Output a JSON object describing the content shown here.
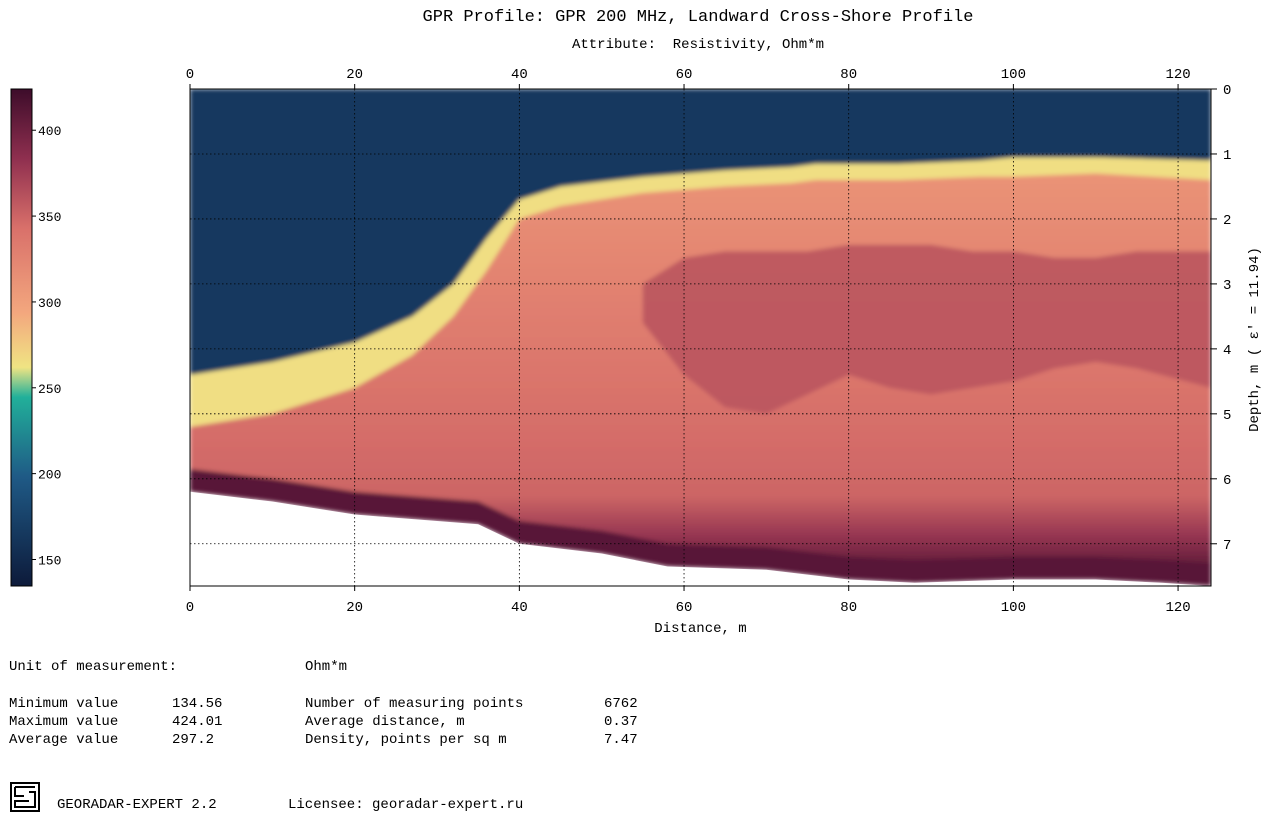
{
  "chart_data": {
    "type": "heatmap",
    "title": "GPR Profile: GPR 200 MHz, Landward Cross-Shore Profile",
    "subtitle": "Attribute:  Resistivity, Ohm*m",
    "xlabel": "Distance, m",
    "ylabel": "Depth, m",
    "ylabel_suffix": "( ε' = 11.94)",
    "xlim": [
      0,
      124
    ],
    "ylim": [
      0,
      7.65
    ],
    "x_ticks": [
      "0",
      "20",
      "40",
      "60",
      "80",
      "100",
      "120"
    ],
    "y_ticks": [
      "0",
      "1",
      "2",
      "3",
      "4",
      "5",
      "6",
      "7"
    ],
    "colorbar": {
      "min": 134.56,
      "max": 424.01,
      "ticks": [
        "400",
        "350",
        "300",
        "250",
        "200",
        "150"
      ]
    },
    "grid": "dotted",
    "bottom_boundary_depth": [
      [
        0,
        6.2
      ],
      [
        10,
        6.35
      ],
      [
        20,
        6.55
      ],
      [
        30,
        6.65
      ],
      [
        35,
        6.7
      ],
      [
        40,
        7.0
      ],
      [
        50,
        7.15
      ],
      [
        58,
        7.35
      ],
      [
        70,
        7.4
      ],
      [
        80,
        7.55
      ],
      [
        88,
        7.6
      ],
      [
        100,
        7.55
      ],
      [
        110,
        7.55
      ],
      [
        118,
        7.6
      ],
      [
        124,
        7.65
      ]
    ],
    "layers": [
      {
        "name": "upper-low-resistivity",
        "value": 165,
        "x": [
          0,
          10,
          20,
          27,
          32,
          36,
          40,
          45,
          55,
          65,
          73,
          76,
          84,
          86,
          96,
          100,
          110,
          124
        ],
        "bottom_depth": [
          4.4,
          4.2,
          3.9,
          3.5,
          3.0,
          2.3,
          1.7,
          1.5,
          1.35,
          1.25,
          1.2,
          1.15,
          1.15,
          1.15,
          1.1,
          1.05,
          1.05,
          1.1
        ]
      },
      {
        "name": "transition-band",
        "value": 265,
        "x": [
          0,
          10,
          20,
          27,
          32,
          36,
          40,
          45,
          55,
          65,
          73,
          76,
          84,
          86,
          96,
          100,
          110,
          124
        ],
        "bottom_depth": [
          5.2,
          5.0,
          4.6,
          4.1,
          3.5,
          2.8,
          2.0,
          1.8,
          1.6,
          1.5,
          1.45,
          1.4,
          1.4,
          1.4,
          1.35,
          1.35,
          1.3,
          1.4
        ]
      },
      {
        "name": "main-body",
        "value": 330,
        "x": [
          0,
          20,
          40,
          60,
          80,
          100,
          124
        ],
        "bottom_depth": [
          6.1,
          6.3,
          6.7,
          7.1,
          7.4,
          7.4,
          7.5
        ]
      },
      {
        "name": "core-high",
        "value": 360,
        "x": [
          55,
          60,
          65,
          70,
          75,
          80,
          85,
          90,
          95,
          100,
          105,
          110,
          115,
          124
        ],
        "top_depth": [
          3.0,
          2.6,
          2.5,
          2.5,
          2.5,
          2.4,
          2.4,
          2.4,
          2.5,
          2.5,
          2.6,
          2.6,
          2.5,
          2.5
        ],
        "bottom_depth": [
          3.6,
          4.4,
          4.9,
          5.0,
          4.7,
          4.4,
          4.6,
          4.7,
          4.6,
          4.5,
          4.3,
          4.2,
          4.3,
          4.6
        ]
      },
      {
        "name": "base-high",
        "value": 410,
        "x": [
          0,
          124
        ],
        "thickness": 0.35
      }
    ]
  },
  "stats": {
    "unit_label": "Unit of measurement:",
    "unit_value": "Ohm*m",
    "min_label": "Minimum value",
    "min_value": "134.56",
    "max_label": "Maximum value",
    "max_value": "424.01",
    "avg_label": "Average value",
    "avg_value": "297.2",
    "points_label": "Number of measuring points",
    "points_value": "6762",
    "dist_label": "Average distance, m",
    "dist_value": "0.37",
    "density_label": "Density, points per sq m",
    "density_value": "7.47"
  },
  "footer": {
    "app": "GEORADAR-EXPERT 2.2",
    "licensee": "Licensee: georadar-expert.ru"
  },
  "colors": {
    "low": "#0d1a3a",
    "mid_low": "#1f5a86",
    "teal": "#21b09a",
    "yellow": "#f0e483",
    "orange": "#f3a77e",
    "salmon": "#d9706a",
    "high": "#8f2f4f",
    "max": "#3d0c2a"
  }
}
